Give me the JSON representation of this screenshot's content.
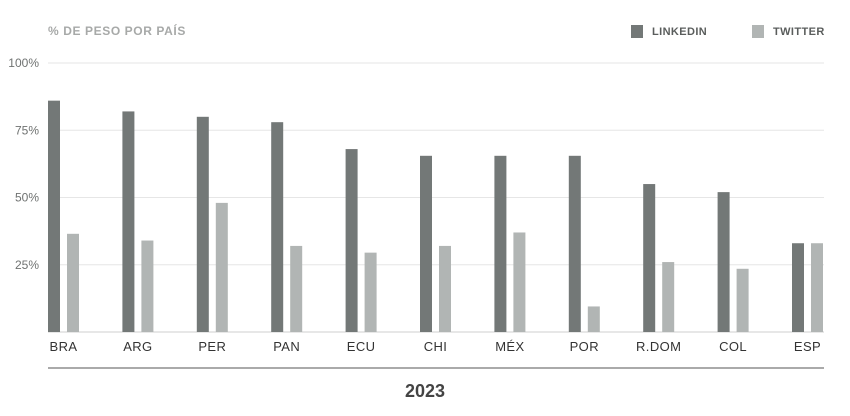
{
  "chart_data": {
    "type": "bar",
    "title": "% DE PESO POR PAÍS",
    "footer": "2023",
    "ylim": [
      0,
      100
    ],
    "yticks": [
      25,
      50,
      75,
      100
    ],
    "ytick_labels": [
      "25%",
      "50%",
      "75%",
      "100%"
    ],
    "grid": true,
    "legend_position": "top-right",
    "categories": [
      "BRA",
      "ARG",
      "PER",
      "PAN",
      "ECU",
      "CHI",
      "MÉX",
      "POR",
      "R.DOM",
      "COL",
      "ESP"
    ],
    "series": [
      {
        "name": "LINKEDIN",
        "color": "#737877",
        "values": [
          86,
          82,
          80,
          78,
          68,
          65.5,
          65.5,
          65.5,
          55,
          52,
          33
        ]
      },
      {
        "name": "TWITTER",
        "color": "#b1b5b4",
        "values": [
          36.5,
          34,
          48,
          32,
          29.5,
          32,
          37,
          9.5,
          26,
          23.5,
          33
        ]
      }
    ]
  }
}
